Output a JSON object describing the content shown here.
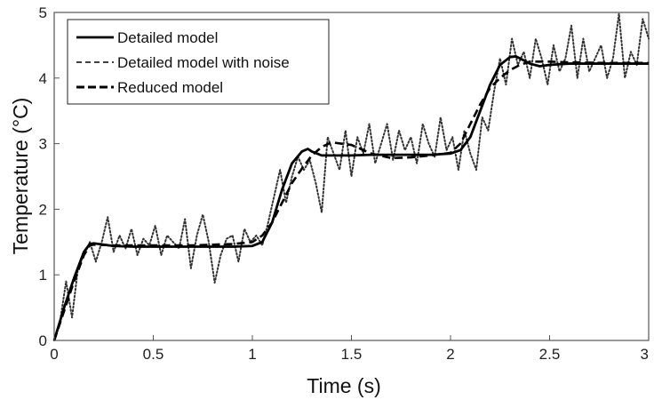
{
  "chart_data": {
    "type": "line",
    "title": "",
    "xlabel": "Time (s)",
    "ylabel": "Temperature (°C)",
    "xlim": [
      0,
      3
    ],
    "ylim": [
      0,
      5
    ],
    "xticks": [
      0,
      0.5,
      1,
      1.5,
      2,
      2.5,
      3
    ],
    "yticks": [
      0,
      1,
      2,
      3,
      4,
      5
    ],
    "xtick_labels": [
      "0",
      "0.5",
      "1",
      "1.5",
      "2",
      "2.5",
      "3"
    ],
    "ytick_labels": [
      "0",
      "1",
      "2",
      "3",
      "4",
      "5"
    ],
    "grid": false,
    "legend_position": "top-left",
    "series": [
      {
        "name": "Detailed model",
        "style": "solid",
        "color": "#000000",
        "x": [
          0,
          0.05,
          0.1,
          0.15,
          0.18,
          0.2,
          0.25,
          0.3,
          0.4,
          0.5,
          0.6,
          0.7,
          0.8,
          0.9,
          1.0,
          1.05,
          1.1,
          1.15,
          1.2,
          1.25,
          1.28,
          1.3,
          1.35,
          1.4,
          1.5,
          1.6,
          1.7,
          1.8,
          1.9,
          2.0,
          2.05,
          2.1,
          2.15,
          2.2,
          2.25,
          2.3,
          2.33,
          2.35,
          2.4,
          2.45,
          2.5,
          2.6,
          2.7,
          2.8,
          2.9,
          3.0
        ],
        "y": [
          0.0,
          0.5,
          0.95,
          1.35,
          1.47,
          1.48,
          1.46,
          1.44,
          1.43,
          1.43,
          1.43,
          1.43,
          1.43,
          1.43,
          1.44,
          1.5,
          1.8,
          2.3,
          2.7,
          2.88,
          2.92,
          2.88,
          2.82,
          2.82,
          2.82,
          2.83,
          2.83,
          2.83,
          2.83,
          2.85,
          2.9,
          3.1,
          3.5,
          3.9,
          4.2,
          4.32,
          4.33,
          4.3,
          4.22,
          4.18,
          4.2,
          4.22,
          4.22,
          4.22,
          4.22,
          4.22
        ]
      },
      {
        "name": "Detailed model with noise",
        "style": "dotted",
        "color": "#333333",
        "x": [
          0,
          0.03,
          0.06,
          0.09,
          0.12,
          0.15,
          0.18,
          0.21,
          0.24,
          0.27,
          0.3,
          0.33,
          0.36,
          0.39,
          0.42,
          0.45,
          0.48,
          0.51,
          0.54,
          0.57,
          0.6,
          0.63,
          0.66,
          0.69,
          0.72,
          0.75,
          0.78,
          0.81,
          0.84,
          0.87,
          0.9,
          0.93,
          0.96,
          0.99,
          1.02,
          1.05,
          1.08,
          1.11,
          1.14,
          1.17,
          1.2,
          1.23,
          1.26,
          1.29,
          1.32,
          1.35,
          1.38,
          1.41,
          1.44,
          1.47,
          1.5,
          1.53,
          1.56,
          1.59,
          1.62,
          1.65,
          1.68,
          1.71,
          1.74,
          1.77,
          1.8,
          1.83,
          1.86,
          1.89,
          1.92,
          1.95,
          1.98,
          2.01,
          2.04,
          2.07,
          2.1,
          2.13,
          2.16,
          2.19,
          2.22,
          2.25,
          2.28,
          2.31,
          2.34,
          2.37,
          2.4,
          2.43,
          2.46,
          2.49,
          2.52,
          2.55,
          2.58,
          2.61,
          2.64,
          2.67,
          2.7,
          2.73,
          2.76,
          2.79,
          2.82,
          2.85,
          2.88,
          2.91,
          2.94,
          2.97,
          3.0
        ],
        "y": [
          0.0,
          0.3,
          0.9,
          0.35,
          1.1,
          1.3,
          1.5,
          1.2,
          1.5,
          1.88,
          1.35,
          1.6,
          1.4,
          1.7,
          1.3,
          1.55,
          1.45,
          1.75,
          1.3,
          1.6,
          1.5,
          1.4,
          1.85,
          1.1,
          1.6,
          1.92,
          1.5,
          0.88,
          1.3,
          1.55,
          1.6,
          1.2,
          1.7,
          1.5,
          1.6,
          1.45,
          1.8,
          2.2,
          2.6,
          2.1,
          2.5,
          2.8,
          2.6,
          2.75,
          2.4,
          1.95,
          3.1,
          2.85,
          2.6,
          3.2,
          2.5,
          3.1,
          2.85,
          3.3,
          2.7,
          3.0,
          3.3,
          2.75,
          3.2,
          2.9,
          3.1,
          2.7,
          3.3,
          3.0,
          2.8,
          3.4,
          2.9,
          3.1,
          2.6,
          3.2,
          2.85,
          2.6,
          3.4,
          3.2,
          3.8,
          4.3,
          3.9,
          4.6,
          4.2,
          4.4,
          4.0,
          4.6,
          4.3,
          3.9,
          4.5,
          4.1,
          4.3,
          4.8,
          4.0,
          4.6,
          4.1,
          4.3,
          4.5,
          4.0,
          4.3,
          4.98,
          4.0,
          4.4,
          4.2,
          4.9,
          4.6
        ]
      },
      {
        "name": "Reduced model",
        "style": "dashed",
        "color": "#000000",
        "x": [
          0,
          0.05,
          0.1,
          0.15,
          0.18,
          0.2,
          0.3,
          0.5,
          0.7,
          0.9,
          1.0,
          1.05,
          1.1,
          1.15,
          1.2,
          1.25,
          1.3,
          1.35,
          1.4,
          1.5,
          1.6,
          1.7,
          1.8,
          1.9,
          2.0,
          2.05,
          2.1,
          2.15,
          2.2,
          2.25,
          2.3,
          2.35,
          2.4,
          2.5,
          2.6,
          2.8,
          3.0
        ],
        "y": [
          0.0,
          0.45,
          0.9,
          1.3,
          1.45,
          1.46,
          1.45,
          1.45,
          1.45,
          1.47,
          1.5,
          1.6,
          1.8,
          2.1,
          2.4,
          2.62,
          2.82,
          2.95,
          3.02,
          2.98,
          2.85,
          2.78,
          2.79,
          2.82,
          2.86,
          3.0,
          3.3,
          3.6,
          3.85,
          4.0,
          4.12,
          4.2,
          4.25,
          4.25,
          4.24,
          4.23,
          4.23
        ]
      }
    ]
  }
}
